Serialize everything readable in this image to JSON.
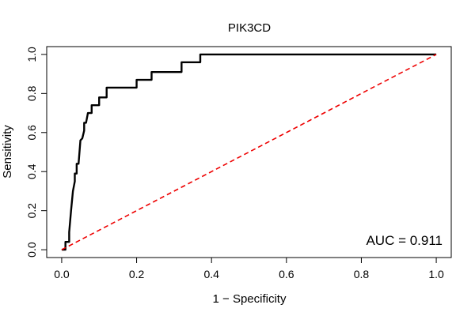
{
  "chart_data": {
    "type": "line",
    "title": "PIK3CD",
    "xlabel": "1 − Specificity",
    "ylabel": "Sensitivity",
    "xlim": [
      -0.04,
      1.04
    ],
    "ylim": [
      -0.04,
      1.04
    ],
    "x_ticks": [
      0.0,
      0.2,
      0.4,
      0.6,
      0.8,
      1.0
    ],
    "y_ticks": [
      0.0,
      0.2,
      0.4,
      0.6,
      0.8,
      1.0
    ],
    "x_tick_labels": [
      "0.0",
      "0.2",
      "0.4",
      "0.6",
      "0.8",
      "1.0"
    ],
    "y_tick_labels": [
      "0.0",
      "0.2",
      "0.4",
      "0.6",
      "0.8",
      "1.0"
    ],
    "grid": false,
    "series": [
      {
        "color": "#000000",
        "style": "solid",
        "x": [
          0.0,
          0.0,
          0.01,
          0.01,
          0.02,
          0.02,
          0.025,
          0.03,
          0.035,
          0.035,
          0.04,
          0.04,
          0.045,
          0.05,
          0.055,
          0.06,
          0.06,
          0.065,
          0.07,
          0.08,
          0.08,
          0.1,
          0.1,
          0.12,
          0.12,
          0.2,
          0.2,
          0.24,
          0.24,
          0.32,
          0.32,
          0.37,
          0.37,
          0.5,
          1.0
        ],
        "y": [
          0.0,
          0.0,
          0.0,
          0.04,
          0.04,
          0.09,
          0.2,
          0.3,
          0.35,
          0.39,
          0.39,
          0.44,
          0.44,
          0.56,
          0.57,
          0.61,
          0.65,
          0.65,
          0.7,
          0.7,
          0.74,
          0.74,
          0.78,
          0.78,
          0.83,
          0.83,
          0.87,
          0.87,
          0.91,
          0.91,
          0.96,
          0.96,
          1.0,
          1.0,
          1.0
        ]
      },
      {
        "color": "#ee0000",
        "style": "dashed",
        "x": [
          0.0,
          1.0
        ],
        "y": [
          0.0,
          1.0
        ]
      }
    ],
    "annotations": [
      {
        "text": "AUC = 0.911",
        "position": "bottom-right"
      }
    ]
  }
}
